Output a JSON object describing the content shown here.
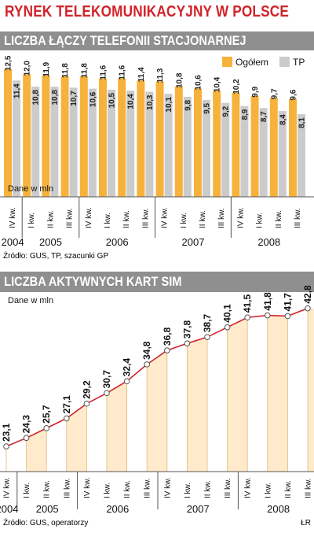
{
  "header": {
    "title": "RYNEK TELEKOMUNIKACYJNY W POLSCE"
  },
  "colors": {
    "red": "#d2232a",
    "orange": "#f7b23b",
    "light_orange": "#ffeacb",
    "gray": "#cbcbcb",
    "header_gray": "#8f8f8f"
  },
  "chart1": {
    "header": "LICZBA ŁĄCZY TELEFONII STACJONARNEJ",
    "unit_label": "Dane w mln",
    "source": "Źródło: GUS, TP, szacunki GP",
    "legend": [
      "Ogółem",
      "TP"
    ]
  },
  "chart2": {
    "header": "LICZBA AKTYWNYCH KART SIM",
    "unit_label": "Dane w mln",
    "source": "Źródło: GUS, operatorzy",
    "signature": "ŁR"
  },
  "chart_data": [
    {
      "type": "bar",
      "title": "LICZBA ŁĄCZY TELEFONII STACJONARNEJ",
      "ylabel": "Dane w mln",
      "quarters": [
        "IV kw.",
        "I kw.",
        "II kw.",
        "III kw.",
        "IV kw.",
        "I kw.",
        "II kw.",
        "III kw.",
        "IV kw.",
        "I kw.",
        "II kw.",
        "III kw.",
        "IV kw.",
        "I kw.",
        "II kw.",
        "III kw."
      ],
      "years": [
        {
          "label": "2004",
          "from": 0,
          "to": 0
        },
        {
          "label": "2005",
          "from": 1,
          "to": 3
        },
        {
          "label": "2006",
          "from": 4,
          "to": 7
        },
        {
          "label": "2007",
          "from": 8,
          "to": 11
        },
        {
          "label": "2008",
          "from": 12,
          "to": 15
        }
      ],
      "series": [
        {
          "name": "Ogółem",
          "color": "#f7b23b",
          "values": [
            12.5,
            12.0,
            11.9,
            11.8,
            11.8,
            11.6,
            11.6,
            11.4,
            11.3,
            10.8,
            10.6,
            10.4,
            10.2,
            9.9,
            9.7,
            9.6
          ]
        },
        {
          "name": "TP",
          "color": "#cbcbcb",
          "values": [
            11.4,
            10.8,
            10.8,
            10.7,
            10.6,
            10.5,
            10.4,
            10.3,
            10.1,
            9.8,
            9.5,
            9.2,
            8.9,
            8.7,
            8.4,
            8.1
          ]
        }
      ],
      "labels": {
        "Ogółem": [
          "12,5",
          "12,0",
          "11,9",
          "11,8",
          "11,8",
          "11,6",
          "11,6",
          "11,4",
          "11,3",
          "10,8",
          "10,6",
          "10,4",
          "10,2",
          "9,9",
          "9,7",
          "9,6"
        ],
        "TP": [
          "11,4",
          "10,8",
          "10,8",
          "10,7",
          "10,6",
          "10,5",
          "10,4",
          "10,3",
          "10,1",
          "9,8",
          "9,5",
          "9,2",
          "8,9",
          "8,7",
          "8,4",
          "8,1"
        ]
      },
      "ylim": [
        0,
        12.5
      ]
    },
    {
      "type": "area",
      "title": "LICZBA AKTYWNYCH KART SIM",
      "ylabel": "Dane w mln",
      "quarters": [
        "IV kw.",
        "I kw.",
        "II kw.",
        "III kw.",
        "IV kw.",
        "I kw.",
        "II kw.",
        "III kw.",
        "IV kw.",
        "I kw.",
        "II kw.",
        "III kw.",
        "IV kw.",
        "I kw.",
        "II kw.",
        "III kw."
      ],
      "years": [
        {
          "label": "2004",
          "from": 0,
          "to": 0
        },
        {
          "label": "2005",
          "from": 1,
          "to": 3
        },
        {
          "label": "2006",
          "from": 4,
          "to": 7
        },
        {
          "label": "2007",
          "from": 8,
          "to": 11
        },
        {
          "label": "2008",
          "from": 12,
          "to": 15
        }
      ],
      "values": [
        23.1,
        24.3,
        25.7,
        27.1,
        29.2,
        30.7,
        32.4,
        34.8,
        36.8,
        37.8,
        38.7,
        40.1,
        41.5,
        41.8,
        41.7,
        42.8
      ],
      "labels": [
        "23,1",
        "24,3",
        "25,7",
        "27,1",
        "29,2",
        "30,7",
        "32,4",
        "34,8",
        "36,8",
        "37,8",
        "38,7",
        "40,1",
        "41,5",
        "41,8",
        "41,7",
        "42,8"
      ],
      "ylim": [
        20,
        44
      ]
    }
  ]
}
